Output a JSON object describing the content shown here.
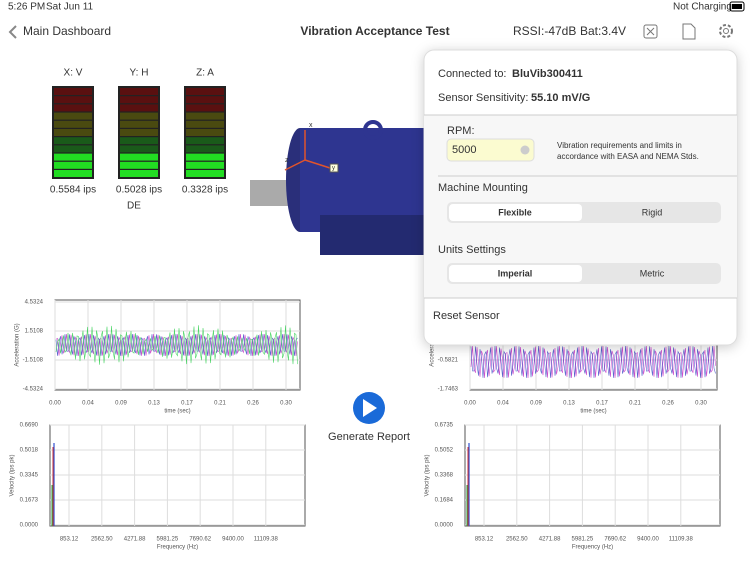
{
  "status_bar": {
    "time": "5:26 PM",
    "date": "Sat Jun 11",
    "battery": "Not Charging"
  },
  "nav": {
    "back": "Main Dashboard",
    "title": "Vibration Acceptance Test",
    "rssi": "RSSI:-47dB",
    "battery": "Bat:3.4V"
  },
  "meters": [
    {
      "label": "X: V",
      "value": "0.5584 ips"
    },
    {
      "label": "Y: H",
      "value": "0.5028 ips"
    },
    {
      "label": "Z: A",
      "value": "0.3328 ips"
    }
  ],
  "meter_group_label": "DE",
  "generate_report": "Generate Report",
  "charts": [
    {
      "y_label": "Acceleration (G)",
      "x_label": "time (sec)",
      "yticks": [
        "-4.5324",
        "-1.5108",
        "1.5108",
        "4.5324"
      ],
      "xticks": [
        "0.00",
        "0.04",
        "0.09",
        "0.13",
        "0.17",
        "0.21",
        "0.26",
        "0.30"
      ]
    },
    {
      "y_label": "Acceleration (G)",
      "x_label": "time (sec)",
      "yticks": [
        "-1.7463",
        "-0.5821"
      ],
      "xticks": [
        "0.00",
        "0.04",
        "0.09",
        "0.13",
        "0.17",
        "0.21",
        "0.26",
        "0.30"
      ]
    },
    {
      "y_label": "Velocity (ips pk)",
      "x_label": "Frequency (Hz)",
      "yticks": [
        "0.0000",
        "0.1673",
        "0.3345",
        "0.5018",
        "0.6690"
      ],
      "xticks": [
        "853.12",
        "2562.50",
        "4271.88",
        "5981.25",
        "7690.62",
        "9400.00",
        "11109.38"
      ]
    },
    {
      "y_label": "Velocity (ips pk)",
      "x_label": "Frequency (Hz)",
      "yticks": [
        "0.0000",
        "0.1684",
        "0.3368",
        "0.5052",
        "0.6735"
      ],
      "xticks": [
        "853.12",
        "2562.50",
        "4271.88",
        "5981.25",
        "7690.62",
        "9400.00",
        "11109.38"
      ]
    }
  ],
  "popover": {
    "connected_label": "Connected to:",
    "connected_value": "BluVib300411",
    "sensitivity_label": "Sensor Sensitivity:",
    "sensitivity_value": "55.10 mV/G",
    "rpm_label": "RPM:",
    "rpm_value": "5000",
    "note": [
      "Vibration requirements and limits in",
      "accordance with EASA and NEMA Stds."
    ],
    "mounting_label": "Machine Mounting",
    "mounting_options": [
      "Flexible",
      "Rigid"
    ],
    "units_label": "Units Settings",
    "units_options": [
      "Imperial",
      "Metric"
    ],
    "reset": "Reset Sensor"
  }
}
